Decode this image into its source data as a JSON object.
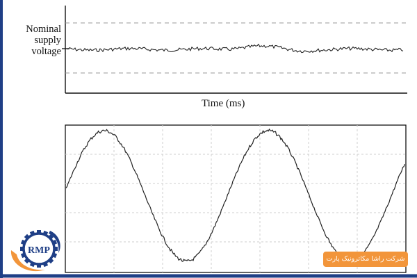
{
  "colors": {
    "accent_blue": "#1f3f86",
    "accent_orange": "#f2953a",
    "trace": "#222222",
    "dashed": "#9a9a9a",
    "grid": "#cfcfcf",
    "axis": "#111111"
  },
  "top_plot": {
    "ylabel_lines": [
      "Nominal",
      "supply",
      "voltage"
    ],
    "xlabel": "Time (ms)"
  },
  "bottom_plot": {
    "trace": "noisy-sine"
  },
  "branding": {
    "badge_text": "شرکت راشا مکاترونیک پارت",
    "logo_text": "RMP",
    "logo_icon": "gear-logo-icon"
  }
}
